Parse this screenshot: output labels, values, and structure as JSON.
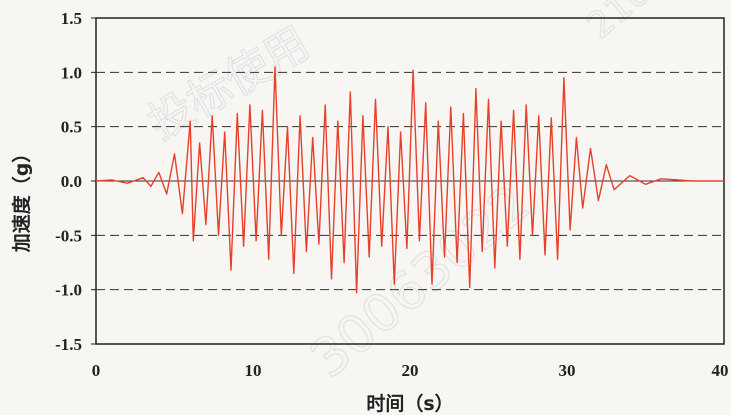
{
  "chart_data": {
    "type": "line",
    "xlabel": "时间（s）",
    "ylabel": "加速度（g）",
    "xlim": [
      0,
      40
    ],
    "ylim": [
      -1.5,
      1.5
    ],
    "xticks": [
      "0",
      "10",
      "20",
      "30",
      "40"
    ],
    "yticks": [
      "1.5",
      "1.0",
      "0.5",
      "0.0",
      "-0.5",
      "-1.0",
      "-1.5"
    ],
    "grid": "dashed horizontal at ±0.5 and ±1.0",
    "line_color": "#e8402a",
    "series": [
      {
        "x": [
          0,
          1,
          2,
          3,
          3.5,
          4,
          4.5,
          5,
          5.5,
          6,
          6.2,
          6.6,
          7,
          7.4,
          7.8,
          8.2,
          8.6,
          9,
          9.4,
          9.8,
          10.2,
          10.6,
          11,
          11.4,
          11.8,
          12.2,
          12.6,
          13,
          13.4,
          13.8,
          14.2,
          14.6,
          15,
          15.4,
          15.8,
          16.2,
          16.6,
          17,
          17.4,
          17.8,
          18.2,
          18.6,
          19,
          19.4,
          19.8,
          20.2,
          20.6,
          21,
          21.4,
          21.8,
          22.2,
          22.6,
          23,
          23.4,
          23.8,
          24.2,
          24.6,
          25,
          25.4,
          25.8,
          26.2,
          26.6,
          27,
          27.4,
          27.8,
          28.2,
          28.6,
          29,
          29.4,
          29.8,
          30.2,
          30.6,
          31,
          31.5,
          32,
          32.5,
          33,
          34,
          35,
          36,
          38,
          40
        ],
        "y": [
          0.0,
          0.01,
          -0.02,
          0.03,
          -0.05,
          0.08,
          -0.12,
          0.25,
          -0.3,
          0.55,
          -0.55,
          0.35,
          -0.4,
          0.6,
          -0.5,
          0.45,
          -0.82,
          0.62,
          -0.6,
          0.7,
          -0.55,
          0.65,
          -0.72,
          1.05,
          -0.5,
          0.5,
          -0.85,
          0.6,
          -0.65,
          0.4,
          -0.58,
          0.7,
          -0.9,
          0.55,
          -0.75,
          0.82,
          -1.03,
          0.6,
          -0.7,
          0.75,
          -0.6,
          0.5,
          -0.95,
          0.45,
          -0.62,
          1.02,
          -0.55,
          0.72,
          -0.95,
          0.55,
          -0.7,
          0.68,
          -0.75,
          0.62,
          -0.98,
          0.85,
          -0.65,
          0.75,
          -0.8,
          0.55,
          -0.6,
          0.65,
          -0.72,
          0.7,
          -0.5,
          0.6,
          -0.68,
          0.58,
          -0.72,
          0.95,
          -0.45,
          0.4,
          -0.25,
          0.3,
          -0.18,
          0.15,
          -0.08,
          0.05,
          -0.03,
          0.02,
          0.0,
          0.0
        ]
      }
    ]
  }
}
